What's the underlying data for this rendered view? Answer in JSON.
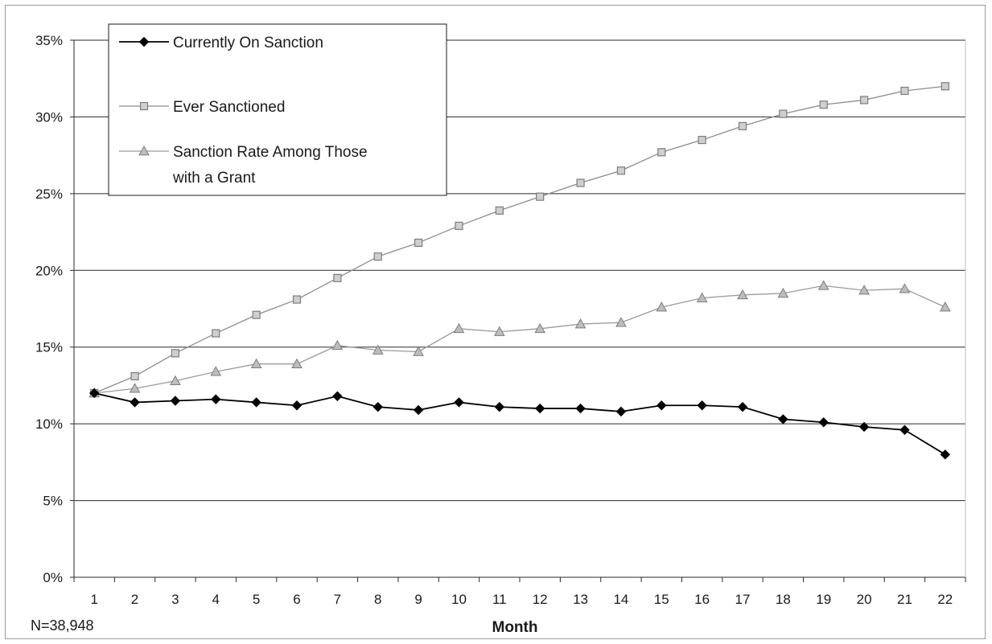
{
  "chart_data": {
    "type": "line",
    "title": "",
    "xlabel": "Month",
    "ylabel": "",
    "note": "N=38,948",
    "x": [
      1,
      2,
      3,
      4,
      5,
      6,
      7,
      8,
      9,
      10,
      11,
      12,
      13,
      14,
      15,
      16,
      17,
      18,
      19,
      20,
      21,
      22
    ],
    "ylim": [
      0,
      0.35
    ],
    "yticks": [
      0,
      0.05,
      0.1,
      0.15,
      0.2,
      0.25,
      0.3,
      0.35
    ],
    "ytick_labels": [
      "0%",
      "5%",
      "10%",
      "15%",
      "20%",
      "25%",
      "30%",
      "35%"
    ],
    "grid": "horizontal",
    "legend_position": "top-left",
    "series": [
      {
        "name": "Currently On Sanction",
        "legend_lines": [
          "Currently On Sanction"
        ],
        "marker": "diamond",
        "color": "#000000",
        "values": [
          0.12,
          0.114,
          0.115,
          0.116,
          0.114,
          0.112,
          0.118,
          0.111,
          0.109,
          0.114,
          0.111,
          0.11,
          0.11,
          0.108,
          0.112,
          0.112,
          0.111,
          0.103,
          0.101,
          0.098,
          0.096,
          0.08
        ]
      },
      {
        "name": "Ever Sanctioned",
        "legend_lines": [
          "Ever Sanctioned"
        ],
        "marker": "square",
        "color": "#8c8c8c",
        "values": [
          0.12,
          0.131,
          0.146,
          0.159,
          0.171,
          0.181,
          0.195,
          0.209,
          0.218,
          0.229,
          0.239,
          0.248,
          0.257,
          0.265,
          0.277,
          0.285,
          0.294,
          0.302,
          0.308,
          0.311,
          0.317,
          0.32
        ]
      },
      {
        "name": "Sanction Rate Among Those with a Grant",
        "legend_lines": [
          "Sanction Rate Among Those",
          "with a Grant"
        ],
        "marker": "triangle",
        "color": "#9a9a9a",
        "values": [
          0.12,
          0.123,
          0.128,
          0.134,
          0.139,
          0.139,
          0.151,
          0.148,
          0.147,
          0.162,
          0.16,
          0.162,
          0.165,
          0.166,
          0.176,
          0.182,
          0.184,
          0.185,
          0.19,
          0.187,
          0.188,
          0.176
        ]
      }
    ]
  }
}
